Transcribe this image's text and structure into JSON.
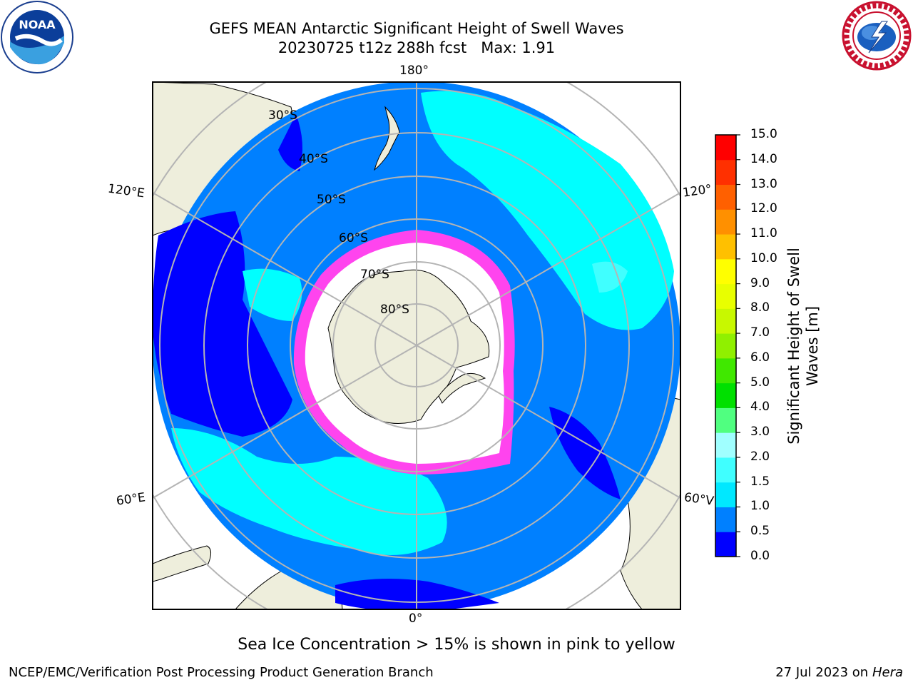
{
  "header": {
    "title_line1": "GEFS MEAN Antarctic Significant Height of Swell Waves",
    "title_line2": "20230725 t12z 288h fcst   Max: 1.91"
  },
  "logos": {
    "left": {
      "name": "noaa-logo",
      "text": "NOAA"
    },
    "right": {
      "name": "nws-logo"
    }
  },
  "map": {
    "projection": "south-polar-stereographic",
    "longitude_labels": {
      "top": "180°",
      "bottom": "0°",
      "upper_left": "120°E",
      "upper_right": "120°",
      "lower_left": "60°E",
      "lower_right": "60°V"
    },
    "latitude_labels": [
      "30°S",
      "40°S",
      "50°S",
      "60°S",
      "70°S",
      "80°S"
    ],
    "colors": {
      "land": "#eeeedc",
      "ocean_0_5_1_0": "#0080ff",
      "ocean_0_0_0_5": "#0000ff",
      "ocean_1_0_1_5": "#00ffff",
      "ocean_1_5_2_0": "#40ffff",
      "sea_ice": "#ff44ee",
      "ice_shelf": "#ffffff",
      "grid": "#b4b4b4"
    }
  },
  "colorbar": {
    "title_line1": "Significant Height of Swell",
    "title_line2": "Waves [m]",
    "ticks": [
      "0.0",
      "0.5",
      "1.0",
      "1.5",
      "2.0",
      "3.0",
      "4.0",
      "5.0",
      "6.0",
      "7.0",
      "8.0",
      "9.0",
      "10.0",
      "11.0",
      "12.0",
      "13.0",
      "14.0",
      "15.0"
    ],
    "colors": [
      "#0000ff",
      "#0080ff",
      "#00e8ff",
      "#40ffff",
      "#a0ffff",
      "#50ff80",
      "#00e000",
      "#40e800",
      "#90f000",
      "#c8f800",
      "#e8ff00",
      "#ffff00",
      "#ffc000",
      "#ff9000",
      "#ff6000",
      "#ff3000",
      "#ff0000"
    ]
  },
  "caption": "Sea Ice Concentration > 15% is shown in pink to yellow",
  "footer": {
    "left": "NCEP/EMC/Verification Post Processing Product Generation Branch",
    "right_date": "27 Jul 2023 on ",
    "right_machine": "Hera"
  }
}
